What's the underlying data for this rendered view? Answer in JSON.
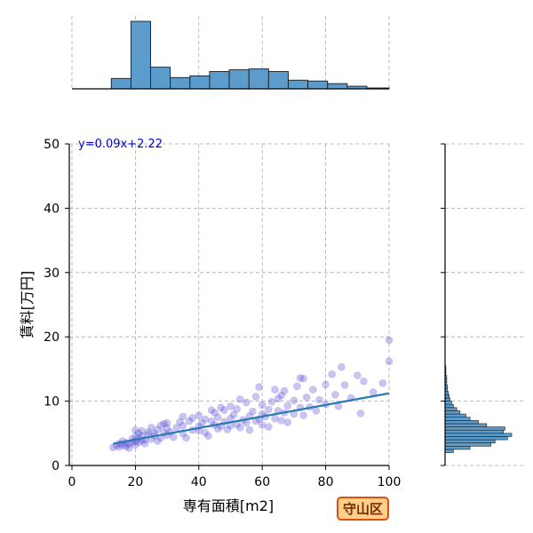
{
  "chart_data": {
    "type": "scatter",
    "xlabel": "専有面積[m2]",
    "ylabel": "賃料[万円]",
    "xlim": [
      0,
      100
    ],
    "ylim": [
      0,
      50
    ],
    "x_ticks": [
      "0",
      "20",
      "40",
      "60",
      "80",
      "100"
    ],
    "y_ticks": [
      "0",
      "10",
      "20",
      "30",
      "40",
      "50"
    ],
    "grid": true,
    "regression": {
      "label": "y=0.09x+2.22",
      "slope": 0.09,
      "intercept": 2.22,
      "x_range": [
        13,
        100
      ]
    },
    "badge": "守山区",
    "colors": {
      "points": "#4a3fcf",
      "regression": "#2a78b5",
      "hist": "#5b9ccc",
      "hist_edge": "#1b1b1b",
      "label": "#0000cc"
    },
    "points": [
      [
        13,
        2.8
      ],
      [
        14,
        3.1
      ],
      [
        15,
        3.4
      ],
      [
        15,
        2.9
      ],
      [
        16,
        3.2
      ],
      [
        16,
        3.8
      ],
      [
        17,
        3.0
      ],
      [
        17,
        3.5
      ],
      [
        18,
        3.3
      ],
      [
        18,
        2.7
      ],
      [
        19,
        3.6
      ],
      [
        19,
        4.1
      ],
      [
        20,
        3.2
      ],
      [
        20,
        4.5
      ],
      [
        20,
        5.5
      ],
      [
        20,
        3.8
      ],
      [
        21,
        3.6
      ],
      [
        21,
        4.2
      ],
      [
        21,
        5.0
      ],
      [
        22,
        3.9
      ],
      [
        22,
        4.6
      ],
      [
        22,
        5.4
      ],
      [
        23,
        4.0
      ],
      [
        23,
        3.4
      ],
      [
        24,
        4.8
      ],
      [
        24,
        5.2
      ],
      [
        25,
        4.1
      ],
      [
        25,
        5.9
      ],
      [
        26,
        4.6
      ],
      [
        26,
        5.0
      ],
      [
        27,
        3.8
      ],
      [
        27,
        5.6
      ],
      [
        28,
        4.3
      ],
      [
        28,
        6.2
      ],
      [
        29,
        5.1
      ],
      [
        30,
        4.7
      ],
      [
        30,
        5.8
      ],
      [
        30,
        6.6
      ],
      [
        31,
        5.2
      ],
      [
        32,
        4.4
      ],
      [
        33,
        5.9
      ],
      [
        34,
        6.8
      ],
      [
        35,
        5.0
      ],
      [
        35,
        6.2
      ],
      [
        36,
        4.3
      ],
      [
        37,
        6.9
      ],
      [
        38,
        5.5
      ],
      [
        38,
        7.4
      ],
      [
        40,
        6.1
      ],
      [
        40,
        7.8
      ],
      [
        40,
        5.4
      ],
      [
        41,
        6.6
      ],
      [
        42,
        7.2
      ],
      [
        42,
        5.1
      ],
      [
        43,
        4.6
      ],
      [
        44,
        6.9
      ],
      [
        45,
        8.2
      ],
      [
        45,
        6.3
      ],
      [
        46,
        5.7
      ],
      [
        46,
        7.5
      ],
      [
        47,
        6.1
      ],
      [
        48,
        8.6
      ],
      [
        48,
        6.8
      ],
      [
        49,
        5.6
      ],
      [
        50,
        7.3
      ],
      [
        50,
        9.2
      ],
      [
        50,
        6.2
      ],
      [
        51,
        7.9
      ],
      [
        52,
        6.4
      ],
      [
        52,
        8.8
      ],
      [
        53,
        5.9
      ],
      [
        54,
        7.1
      ],
      [
        55,
        9.8
      ],
      [
        55,
        6.6
      ],
      [
        56,
        7.7
      ],
      [
        56,
        5.5
      ],
      [
        57,
        8.4
      ],
      [
        58,
        6.9
      ],
      [
        58,
        10.7
      ],
      [
        59,
        7.2
      ],
      [
        60,
        8.0
      ],
      [
        60,
        6.3
      ],
      [
        60,
        9.4
      ],
      [
        61,
        7.6
      ],
      [
        62,
        8.7
      ],
      [
        62,
        6.0
      ],
      [
        63,
        9.9
      ],
      [
        64,
        7.3
      ],
      [
        65,
        8.5
      ],
      [
        65,
        10.4
      ],
      [
        66,
        7.0
      ],
      [
        67,
        11.6
      ],
      [
        67,
        8.2
      ],
      [
        68,
        9.3
      ],
      [
        68,
        6.7
      ],
      [
        70,
        10.1
      ],
      [
        70,
        8.0
      ],
      [
        71,
        12.3
      ],
      [
        72,
        9.0
      ],
      [
        73,
        13.5
      ],
      [
        73,
        7.8
      ],
      [
        74,
        10.6
      ],
      [
        75,
        9.1
      ],
      [
        76,
        11.8
      ],
      [
        77,
        8.5
      ],
      [
        78,
        10.2
      ],
      [
        80,
        12.6
      ],
      [
        80,
        9.5
      ],
      [
        82,
        14.2
      ],
      [
        83,
        11.0
      ],
      [
        84,
        9.2
      ],
      [
        85,
        15.3
      ],
      [
        86,
        12.5
      ],
      [
        88,
        10.5
      ],
      [
        90,
        14.0
      ],
      [
        91,
        8.1
      ],
      [
        92,
        13.1
      ],
      [
        95,
        11.4
      ],
      [
        98,
        12.8
      ],
      [
        100,
        19.5
      ],
      [
        100,
        16.2
      ],
      [
        59,
        12.2
      ],
      [
        64,
        11.8
      ],
      [
        72,
        13.6
      ],
      [
        66,
        10.9
      ],
      [
        44,
        8.6
      ],
      [
        35,
        7.6
      ],
      [
        29,
        6.5
      ],
      [
        47,
        9.0
      ],
      [
        53,
        10.3
      ]
    ],
    "x_histogram": {
      "bin_edges": [
        0,
        6.2,
        12.4,
        18.6,
        24.8,
        31.0,
        37.2,
        43.4,
        49.6,
        55.8,
        62.0,
        68.2,
        74.4,
        80.6,
        86.8,
        93.0,
        100
      ],
      "counts": [
        0,
        0,
        12,
        78,
        25,
        13,
        15,
        20,
        22,
        23,
        20,
        10,
        9,
        6,
        3,
        1
      ]
    },
    "y_histogram": {
      "bin_edges": [
        2,
        2.5,
        3,
        3.5,
        4,
        4.5,
        5,
        5.5,
        6,
        6.5,
        7,
        7.5,
        8,
        8.5,
        9,
        9.5,
        10,
        10.5,
        11,
        11.5,
        12,
        12.5,
        13,
        13.5,
        14,
        14.5,
        15,
        15.5
      ],
      "counts": [
        10,
        30,
        55,
        60,
        75,
        80,
        70,
        72,
        50,
        40,
        30,
        25,
        18,
        14,
        10,
        8,
        6,
        5,
        4,
        3,
        3,
        2,
        2,
        2,
        1,
        1,
        1
      ]
    }
  }
}
